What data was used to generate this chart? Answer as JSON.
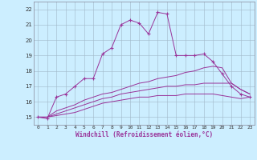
{
  "xlabel": "Windchill (Refroidissement éolien,°C)",
  "background_color": "#cceeff",
  "grid_color": "#a0b8c8",
  "line_color": "#993399",
  "xlim": [
    -0.5,
    23.5
  ],
  "ylim": [
    14.5,
    22.5
  ],
  "xticks": [
    0,
    1,
    2,
    3,
    4,
    5,
    6,
    7,
    8,
    9,
    10,
    11,
    12,
    13,
    14,
    15,
    16,
    17,
    18,
    19,
    20,
    21,
    22,
    23
  ],
  "yticks": [
    15,
    16,
    17,
    18,
    19,
    20,
    21,
    22
  ],
  "series": [
    [
      15.0,
      14.9,
      16.3,
      16.5,
      17.0,
      17.5,
      17.5,
      19.1,
      19.5,
      21.0,
      21.3,
      21.1,
      20.4,
      21.8,
      21.7,
      19.0,
      19.0,
      19.0,
      19.1,
      18.6,
      17.8,
      17.0,
      16.5,
      16.3
    ],
    [
      15.0,
      15.0,
      15.4,
      15.6,
      15.8,
      16.1,
      16.3,
      16.5,
      16.6,
      16.8,
      17.0,
      17.2,
      17.3,
      17.5,
      17.6,
      17.7,
      17.9,
      18.0,
      18.2,
      18.3,
      18.2,
      17.2,
      16.8,
      16.5
    ],
    [
      15.0,
      15.0,
      15.2,
      15.4,
      15.6,
      15.8,
      16.0,
      16.2,
      16.3,
      16.5,
      16.6,
      16.7,
      16.8,
      16.9,
      17.0,
      17.0,
      17.1,
      17.1,
      17.2,
      17.2,
      17.2,
      17.2,
      16.8,
      16.5
    ],
    [
      15.0,
      15.0,
      15.1,
      15.2,
      15.3,
      15.5,
      15.7,
      15.9,
      16.0,
      16.1,
      16.2,
      16.3,
      16.3,
      16.4,
      16.4,
      16.4,
      16.5,
      16.5,
      16.5,
      16.5,
      16.4,
      16.3,
      16.2,
      16.3
    ]
  ],
  "marker": "+",
  "xlabel_fontsize": 5.5,
  "tick_fontsize": 4.5,
  "linewidth": 0.7,
  "markersize": 2.5
}
